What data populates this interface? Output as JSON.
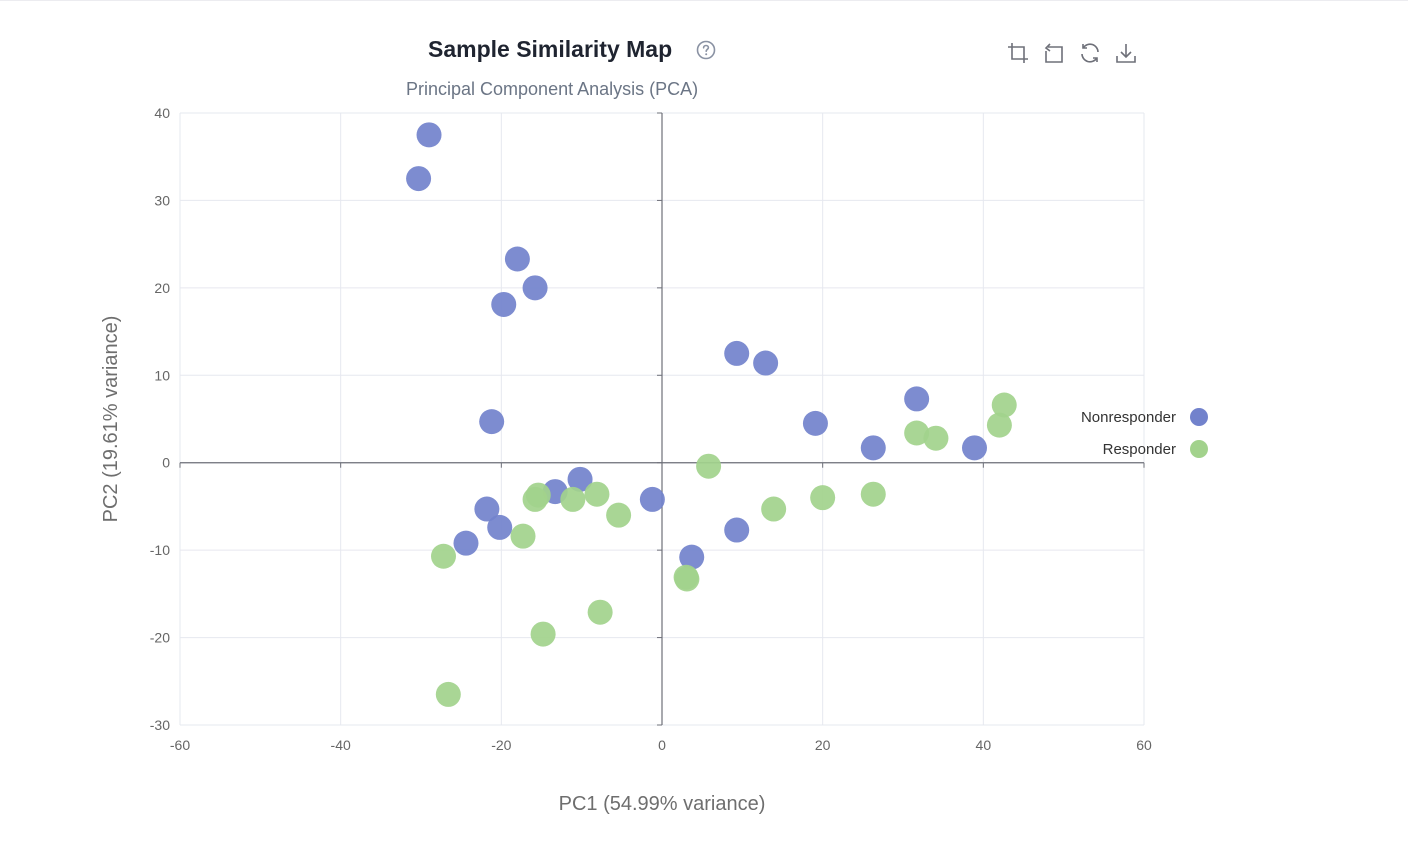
{
  "header": {
    "title": "Sample Similarity Map",
    "help_icon": "question-circle-icon",
    "toolbar": [
      {
        "name": "crop-icon",
        "label": "Zoom"
      },
      {
        "name": "undo-icon",
        "label": "Back"
      },
      {
        "name": "refresh-icon",
        "label": "Restore"
      },
      {
        "name": "download-icon",
        "label": "Save as image"
      }
    ]
  },
  "colors": {
    "nonresponder": "#7282cc",
    "responder": "#a2d28c",
    "grid": "#e6e8ef",
    "axis": "#6e7079"
  },
  "chart_data": {
    "type": "scatter",
    "title": "",
    "subtitle": "Principal Component Analysis (PCA)",
    "xlabel": "PC1 (54.99% variance)",
    "ylabel": "PC2 (19.61% variance)",
    "xlim": [
      -60,
      60
    ],
    "ylim": [
      -30,
      40
    ],
    "xticks": [
      -60,
      -40,
      -20,
      0,
      20,
      40,
      60
    ],
    "yticks": [
      -30,
      -20,
      -10,
      0,
      10,
      20,
      30,
      40
    ],
    "grid": true,
    "legend_position": "right",
    "series": [
      {
        "name": "Nonresponder",
        "color": "#7282cc",
        "points": [
          [
            -29,
            37.5
          ],
          [
            -30.3,
            32.5
          ],
          [
            -18,
            23.3
          ],
          [
            -15.8,
            20
          ],
          [
            -19.7,
            18.1
          ],
          [
            -21.2,
            4.7
          ],
          [
            -10.2,
            -1.9
          ],
          [
            -13.3,
            -3.3
          ],
          [
            -21.8,
            -5.3
          ],
          [
            -20.2,
            -7.4
          ],
          [
            -24.4,
            -9.2
          ],
          [
            -1.2,
            -4.2
          ],
          [
            9.3,
            12.5
          ],
          [
            12.9,
            11.4
          ],
          [
            19.1,
            4.5
          ],
          [
            26.3,
            1.7
          ],
          [
            31.7,
            7.3
          ],
          [
            38.9,
            1.7
          ],
          [
            9.3,
            -7.7
          ],
          [
            3.7,
            -10.8
          ]
        ]
      },
      {
        "name": "Responder",
        "color": "#a2d28c",
        "points": [
          [
            5.8,
            -0.4
          ],
          [
            -15.4,
            -3.7
          ],
          [
            -15.8,
            -4.2
          ],
          [
            -11.1,
            -4.2
          ],
          [
            -8.1,
            -3.6
          ],
          [
            -5.4,
            -6
          ],
          [
            -17.3,
            -8.4
          ],
          [
            -27.2,
            -10.7
          ],
          [
            -14.8,
            -19.6
          ],
          [
            -7.7,
            -17.1
          ],
          [
            -26.6,
            -26.5
          ],
          [
            3,
            -13.1
          ],
          [
            3.1,
            -13.3
          ],
          [
            13.9,
            -5.3
          ],
          [
            20,
            -4
          ],
          [
            26.3,
            -3.6
          ],
          [
            31.7,
            3.4
          ],
          [
            34.1,
            2.8
          ],
          [
            42.6,
            6.6
          ],
          [
            42,
            4.3
          ]
        ]
      }
    ]
  }
}
